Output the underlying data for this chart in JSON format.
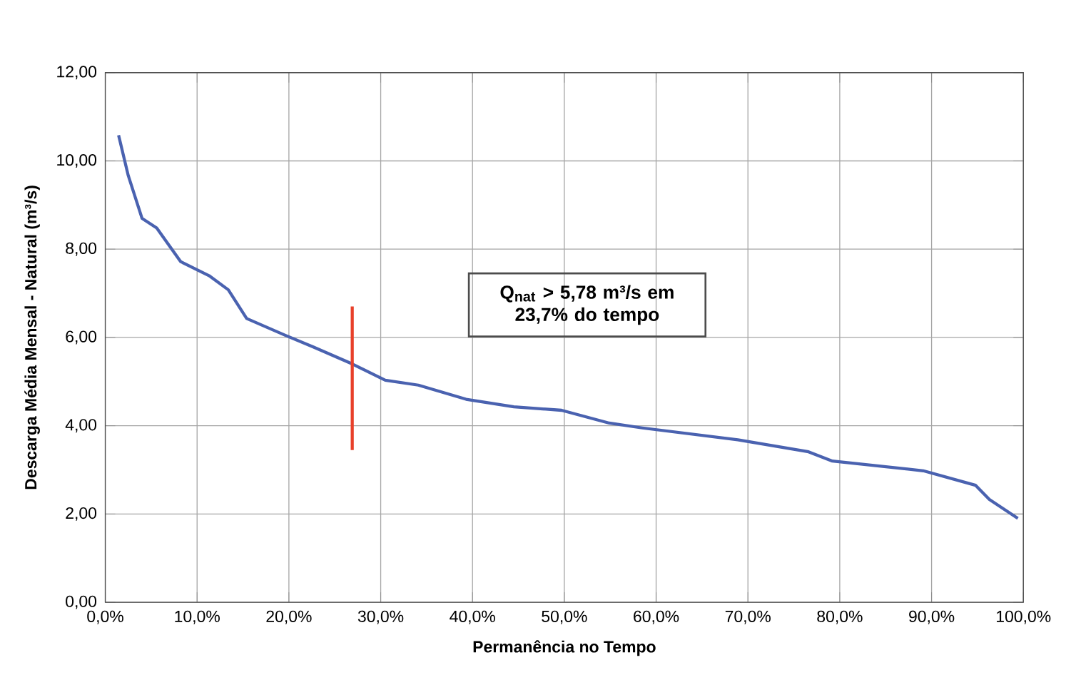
{
  "chart_data": {
    "type": "line",
    "xlabel": "Permanência no Tempo",
    "ylabel": "Descarga Média Mensal - Natural (m³/s)",
    "xlim": [
      0,
      100
    ],
    "ylim": [
      0,
      12
    ],
    "xticks": [
      {
        "value": 0,
        "label": "0,0%"
      },
      {
        "value": 10,
        "label": "10,0%"
      },
      {
        "value": 20,
        "label": "20,0%"
      },
      {
        "value": 30,
        "label": "30,0%"
      },
      {
        "value": 40,
        "label": "40,0%"
      },
      {
        "value": 50,
        "label": "50,0%"
      },
      {
        "value": 60,
        "label": "60,0%"
      },
      {
        "value": 70,
        "label": "70,0%"
      },
      {
        "value": 80,
        "label": "80,0%"
      },
      {
        "value": 90,
        "label": "90,0%"
      },
      {
        "value": 100,
        "label": "100,0%"
      }
    ],
    "yticks": [
      {
        "value": 0,
        "label": "0,00"
      },
      {
        "value": 2,
        "label": "2,00"
      },
      {
        "value": 4,
        "label": "4,00"
      },
      {
        "value": 6,
        "label": "6,00"
      },
      {
        "value": 8,
        "label": "8,00"
      },
      {
        "value": 10,
        "label": "10,00"
      },
      {
        "value": 12,
        "label": "12,00"
      }
    ],
    "grid": true,
    "marker": "none",
    "line_style": "solid",
    "annotations": [
      "Q$_{nat}$ > 5,78 m³/s em 23,7% do tempo"
    ],
    "series": [
      {
        "color": "#4a62b0",
        "x": [
          1.45,
          2.5,
          4.0,
          5.6,
          8.2,
          11.3,
          13.4,
          15.4,
          19.6,
          22.7,
          26.9,
          30.5,
          34.1,
          39.3,
          44.5,
          49.7,
          54.9,
          58.5,
          68.9,
          76.6,
          79.2,
          89.1,
          94.8,
          96.3,
          99.4
        ],
        "values": [
          10.58,
          9.67,
          8.7,
          8.48,
          7.72,
          7.4,
          7.08,
          6.43,
          6.05,
          5.78,
          5.4,
          5.03,
          4.92,
          4.6,
          4.43,
          4.35,
          4.06,
          3.95,
          3.68,
          3.41,
          3.2,
          2.98,
          2.65,
          2.33,
          1.9
        ]
      },
      {
        "color": "#e8402a",
        "x": [
          26.9,
          26.9
        ],
        "values": [
          6.7,
          3.45
        ]
      }
    ]
  }
}
